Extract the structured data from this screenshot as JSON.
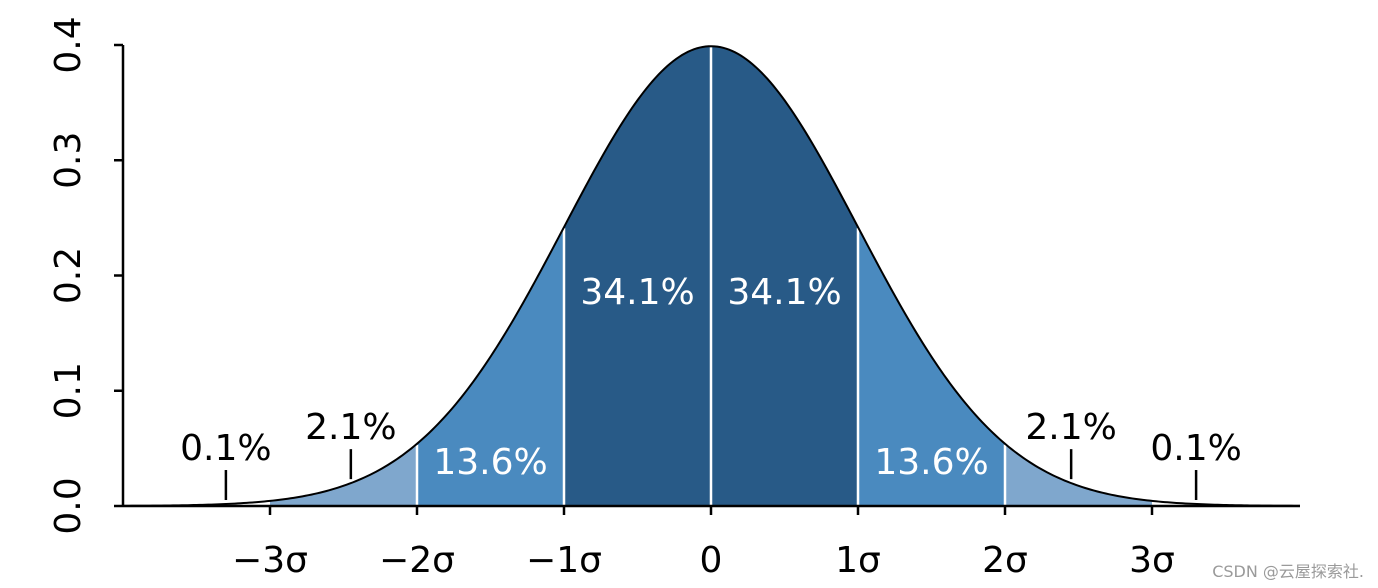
{
  "chart_data": {
    "type": "area",
    "title": "",
    "xlabel": "",
    "ylabel": "",
    "distribution": "standard normal probability density",
    "xlim": [
      -4,
      4
    ],
    "ylim": [
      0,
      0.4
    ],
    "grid": false,
    "legend": "none",
    "y_ticks": [
      {
        "value": 0.0,
        "label": "0.0"
      },
      {
        "value": 0.1,
        "label": "0.1"
      },
      {
        "value": 0.2,
        "label": "0.2"
      },
      {
        "value": 0.3,
        "label": "0.3"
      },
      {
        "value": 0.4,
        "label": "0.4"
      }
    ],
    "x_ticks": [
      {
        "value": -3,
        "label": "−3σ"
      },
      {
        "value": -2,
        "label": "−2σ"
      },
      {
        "value": -1,
        "label": "−1σ"
      },
      {
        "value": 0,
        "label": "0"
      },
      {
        "value": 1,
        "label": "1σ"
      },
      {
        "value": 2,
        "label": "2σ"
      },
      {
        "value": 3,
        "label": "3σ"
      }
    ],
    "regions": [
      {
        "from": -3,
        "to": -2,
        "color": "#7fa7cd"
      },
      {
        "from": -2,
        "to": -1,
        "color": "#4a8abf"
      },
      {
        "from": -1,
        "to": 0,
        "color": "#285a87"
      },
      {
        "from": 0,
        "to": 1,
        "color": "#285a87"
      },
      {
        "from": 1,
        "to": 2,
        "color": "#4a8abf"
      },
      {
        "from": 2,
        "to": 3,
        "color": "#7fa7cd"
      }
    ],
    "annotations": [
      {
        "label": "0.1%",
        "x": -3.3,
        "pointer": true,
        "color": "#000000"
      },
      {
        "label": "2.1%",
        "x": -2.45,
        "pointer": true,
        "color": "#000000"
      },
      {
        "label": "13.6%",
        "x": -1.5,
        "pointer": false,
        "color": "#ffffff"
      },
      {
        "label": "34.1%",
        "x": -0.5,
        "pointer": false,
        "color": "#ffffff"
      },
      {
        "label": "34.1%",
        "x": 0.5,
        "pointer": false,
        "color": "#ffffff"
      },
      {
        "label": "13.6%",
        "x": 1.5,
        "pointer": false,
        "color": "#ffffff"
      },
      {
        "label": "2.1%",
        "x": 2.45,
        "pointer": true,
        "color": "#000000"
      },
      {
        "label": "0.1%",
        "x": 3.3,
        "pointer": true,
        "color": "#000000"
      }
    ],
    "colors": {
      "curve": "#000000",
      "divider": "#ffffff",
      "axis": "#000000"
    }
  },
  "watermark": "CSDN @云屋探索社."
}
